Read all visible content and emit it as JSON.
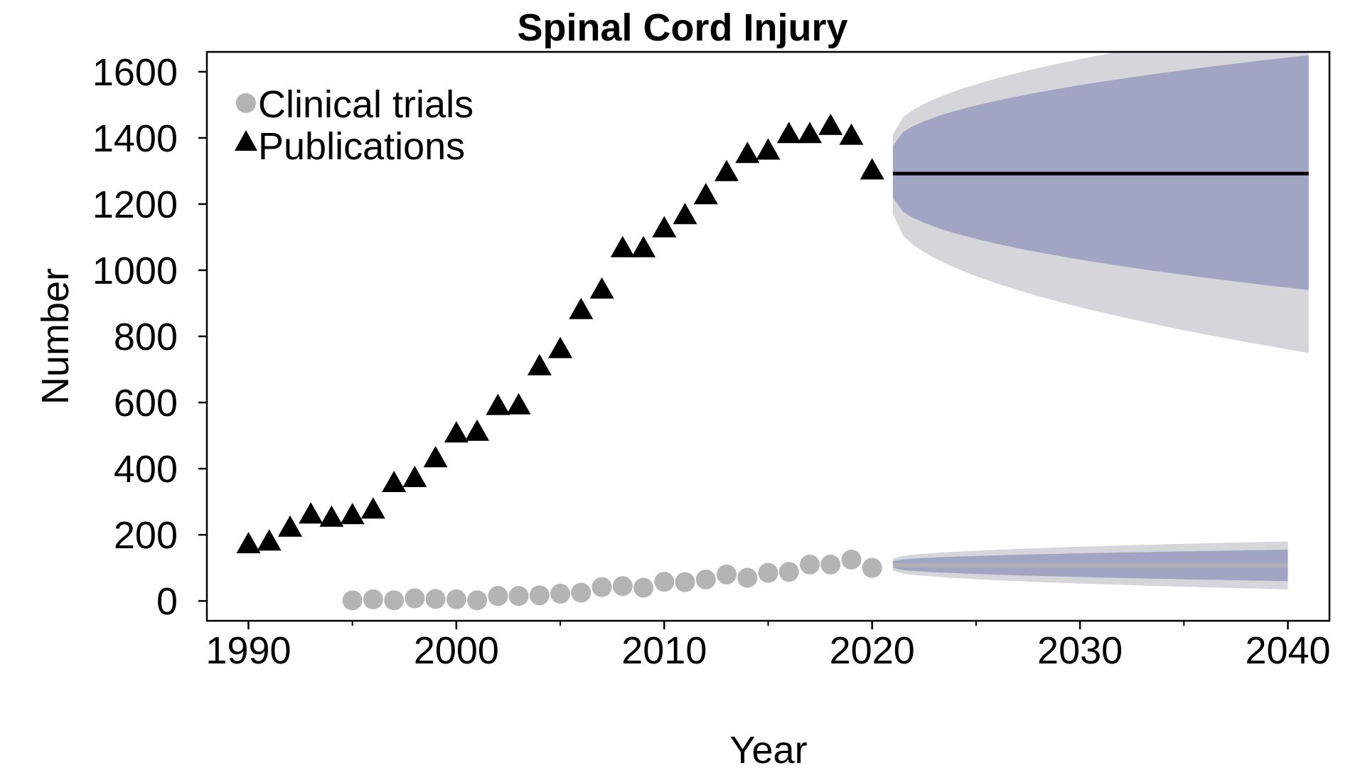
{
  "chart_data": {
    "type": "scatter",
    "title": "Spinal Cord Injury",
    "xlabel": "Year",
    "ylabel": "Number",
    "xlim": [
      1988,
      2042
    ],
    "ylim": [
      -60,
      1660
    ],
    "x_ticks": [
      1990,
      2000,
      2010,
      2020,
      2030,
      2040
    ],
    "x_minor_ticks": [
      1995,
      2005,
      2015,
      2025,
      2035
    ],
    "y_ticks": [
      0,
      200,
      400,
      600,
      800,
      1000,
      1200,
      1400,
      1600
    ],
    "grid": false,
    "legend_position": "top-left",
    "series": [
      {
        "name": "Clinical trials",
        "marker": "circle",
        "color": "#b4b4b4",
        "x": [
          1995,
          1996,
          1997,
          1998,
          1999,
          2000,
          2001,
          2002,
          2003,
          2004,
          2005,
          2006,
          2007,
          2008,
          2009,
          2010,
          2011,
          2012,
          2013,
          2014,
          2015,
          2016,
          2017,
          2018,
          2019,
          2020
        ],
        "y": [
          2,
          5,
          2,
          8,
          6,
          5,
          2,
          15,
          15,
          17,
          22,
          25,
          42,
          45,
          40,
          58,
          57,
          65,
          80,
          70,
          85,
          88,
          110,
          110,
          125,
          100
        ]
      },
      {
        "name": "Publications",
        "marker": "triangle",
        "color": "#000000",
        "x": [
          1990,
          1991,
          1992,
          1993,
          1994,
          1995,
          1996,
          1997,
          1998,
          1999,
          2000,
          2001,
          2002,
          2003,
          2004,
          2005,
          2006,
          2007,
          2008,
          2009,
          2010,
          2011,
          2012,
          2013,
          2014,
          2015,
          2016,
          2017,
          2018,
          2019,
          2020
        ],
        "y": [
          170,
          178,
          220,
          260,
          250,
          258,
          275,
          355,
          370,
          430,
          505,
          510,
          588,
          590,
          708,
          760,
          878,
          940,
          1065,
          1065,
          1125,
          1165,
          1225,
          1295,
          1350,
          1360,
          1410,
          1410,
          1435,
          1405,
          1300
        ]
      }
    ],
    "forecasts": [
      {
        "series": "Publications",
        "line_color": "#000000",
        "x_start": 2021,
        "x_end": 2041,
        "value": 1292,
        "inner_band": {
          "color": "#a2a4c4",
          "lower_start": 1220,
          "upper_start": 1375,
          "lower_end": 940,
          "upper_end": 1650
        },
        "outer_band": {
          "color": "#d5d5da",
          "lower_start": 1170,
          "upper_start": 1410,
          "lower_end": 750,
          "upper_end": 1750
        }
      },
      {
        "series": "Clinical trials",
        "line_color": "#b4b4b4",
        "x_start": 2021,
        "x_end": 2040,
        "value": 108,
        "inner_band": {
          "color": "#a2a4c4",
          "lower_start": 100,
          "upper_start": 120,
          "lower_end": 60,
          "upper_end": 155
        },
        "outer_band": {
          "color": "#d5d5da",
          "lower_start": 92,
          "upper_start": 128,
          "lower_end": 35,
          "upper_end": 180
        }
      }
    ]
  }
}
